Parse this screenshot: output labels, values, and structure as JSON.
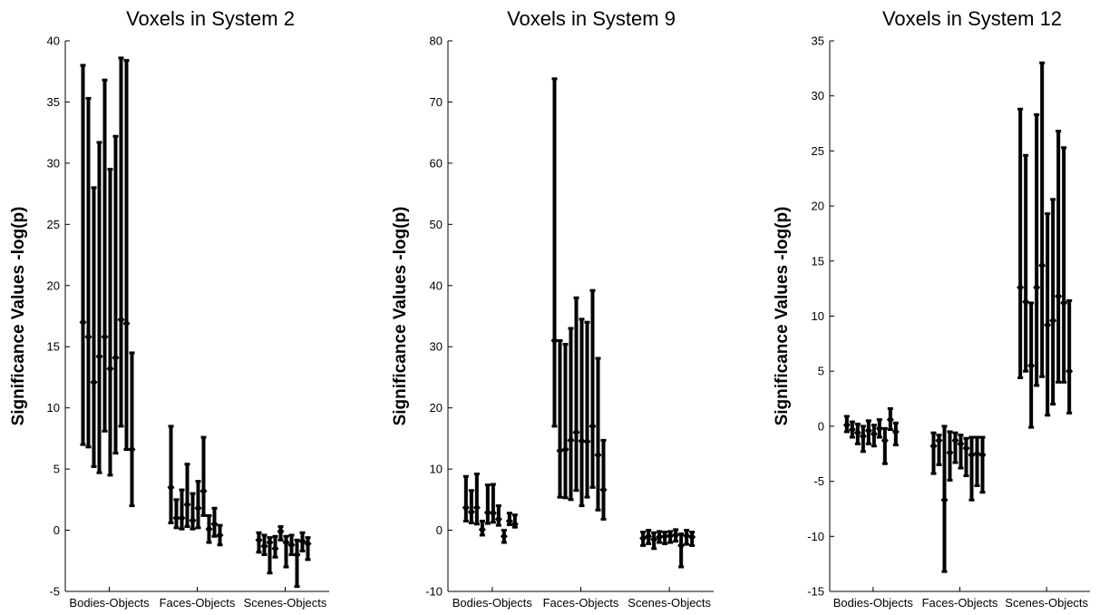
{
  "chart_data": [
    {
      "type": "errorbar",
      "title": "Voxels in System 2",
      "ylabel": "Significance Values -log(p)",
      "ylim": [
        -5,
        40
      ],
      "yticks": [
        -5,
        0,
        5,
        10,
        15,
        20,
        25,
        30,
        35,
        40
      ],
      "categories": [
        "Bodies-Objects",
        "Faces-Objects",
        "Scenes-Objects"
      ],
      "groups": [
        {
          "category": "Bodies-Objects",
          "points": [
            {
              "y": 17.0,
              "lo": 7.0,
              "hi": 38.0
            },
            {
              "y": 15.8,
              "lo": 6.8,
              "hi": 35.3
            },
            {
              "y": 12.1,
              "lo": 5.2,
              "hi": 28.0
            },
            {
              "y": 14.2,
              "lo": 4.7,
              "hi": 31.7
            },
            {
              "y": 15.8,
              "lo": 8.1,
              "hi": 36.8
            },
            {
              "y": 13.2,
              "lo": 4.5,
              "hi": 29.5
            },
            {
              "y": 14.1,
              "lo": 6.3,
              "hi": 32.2
            },
            {
              "y": 17.2,
              "lo": 8.5,
              "hi": 38.6
            },
            {
              "y": 16.9,
              "lo": 6.6,
              "hi": 38.4
            },
            {
              "y": 6.6,
              "lo": 2.0,
              "hi": 14.5
            }
          ]
        },
        {
          "category": "Faces-Objects",
          "points": [
            {
              "y": 3.5,
              "lo": 0.6,
              "hi": 8.5
            },
            {
              "y": 1.0,
              "lo": 0.2,
              "hi": 2.5
            },
            {
              "y": 1.0,
              "lo": 0.1,
              "hi": 3.3
            },
            {
              "y": 2.1,
              "lo": 0.3,
              "hi": 5.4
            },
            {
              "y": 0.8,
              "lo": 0.1,
              "hi": 3.0
            },
            {
              "y": 1.8,
              "lo": 0.2,
              "hi": 4.0
            },
            {
              "y": 3.2,
              "lo": 1.2,
              "hi": 7.6
            },
            {
              "y": 0.1,
              "lo": -1.0,
              "hi": 1.2
            },
            {
              "y": 0.5,
              "lo": -0.5,
              "hi": 1.8
            },
            {
              "y": -0.4,
              "lo": -1.2,
              "hi": 0.4
            }
          ]
        },
        {
          "category": "Scenes-Objects",
          "points": [
            {
              "y": -0.8,
              "lo": -1.8,
              "hi": -0.2
            },
            {
              "y": -1.3,
              "lo": -2.0,
              "hi": -0.4
            },
            {
              "y": -1.0,
              "lo": -3.5,
              "hi": -0.6
            },
            {
              "y": -1.5,
              "lo": -2.2,
              "hi": -0.5
            },
            {
              "y": -0.1,
              "lo": -0.8,
              "hi": 0.3
            },
            {
              "y": -1.0,
              "lo": -3.0,
              "hi": -0.5
            },
            {
              "y": -1.2,
              "lo": -2.0,
              "hi": -0.4
            },
            {
              "y": -2.0,
              "lo": -4.6,
              "hi": -0.8
            },
            {
              "y": -0.9,
              "lo": -1.7,
              "hi": -0.2
            },
            {
              "y": -1.1,
              "lo": -2.4,
              "hi": -0.6
            }
          ]
        }
      ]
    },
    {
      "type": "errorbar",
      "title": "Voxels in System 9",
      "ylabel": "Significance Values -log(p)",
      "ylim": [
        -10,
        80
      ],
      "yticks": [
        -10,
        0,
        10,
        20,
        30,
        40,
        50,
        60,
        70,
        80
      ],
      "categories": [
        "Bodies-Objects",
        "Faces-Objects",
        "Scenes-Objects"
      ],
      "groups": [
        {
          "category": "Bodies-Objects",
          "points": [
            {
              "y": 3.7,
              "lo": 1.5,
              "hi": 8.8
            },
            {
              "y": 3.0,
              "lo": 1.2,
              "hi": 6.5
            },
            {
              "y": 3.7,
              "lo": 1.0,
              "hi": 9.2
            },
            {
              "y": 0.1,
              "lo": -0.8,
              "hi": 1.5
            },
            {
              "y": 2.9,
              "lo": 1.1,
              "hi": 7.4
            },
            {
              "y": 2.8,
              "lo": 1.3,
              "hi": 7.5
            },
            {
              "y": 1.8,
              "lo": 0.8,
              "hi": 4.0
            },
            {
              "y": -1.0,
              "lo": -2.0,
              "hi": 0.0
            },
            {
              "y": 1.5,
              "lo": 0.9,
              "hi": 2.8
            },
            {
              "y": 1.0,
              "lo": 0.5,
              "hi": 2.5
            }
          ]
        },
        {
          "category": "Faces-Objects",
          "points": [
            {
              "y": 31.0,
              "lo": 17.0,
              "hi": 73.8
            },
            {
              "y": 13.0,
              "lo": 5.4,
              "hi": 31.0
            },
            {
              "y": 13.2,
              "lo": 5.3,
              "hi": 30.4
            },
            {
              "y": 14.7,
              "lo": 5.0,
              "hi": 33.0
            },
            {
              "y": 16.0,
              "lo": 6.5,
              "hi": 38.0
            },
            {
              "y": 14.6,
              "lo": 4.0,
              "hi": 34.5
            },
            {
              "y": 14.5,
              "lo": 5.4,
              "hi": 34.0
            },
            {
              "y": 17.0,
              "lo": 7.0,
              "hi": 39.2
            },
            {
              "y": 12.3,
              "lo": 3.3,
              "hi": 28.1
            },
            {
              "y": 6.6,
              "lo": 1.8,
              "hi": 14.7
            }
          ]
        },
        {
          "category": "Scenes-Objects",
          "points": [
            {
              "y": -1.3,
              "lo": -2.5,
              "hi": -0.3
            },
            {
              "y": -1.0,
              "lo": -2.2,
              "hi": 0.0
            },
            {
              "y": -1.5,
              "lo": -3.0,
              "hi": -0.4
            },
            {
              "y": -1.1,
              "lo": -2.0,
              "hi": -0.2
            },
            {
              "y": -1.0,
              "lo": -2.2,
              "hi": -0.3
            },
            {
              "y": -0.9,
              "lo": -2.0,
              "hi": -0.2
            },
            {
              "y": -0.8,
              "lo": -1.8,
              "hi": 0.1
            },
            {
              "y": -2.5,
              "lo": -6.0,
              "hi": -0.6
            },
            {
              "y": -0.9,
              "lo": -2.3,
              "hi": 0.0
            },
            {
              "y": -1.1,
              "lo": -2.5,
              "hi": -0.3
            }
          ]
        }
      ]
    },
    {
      "type": "errorbar",
      "title": "Voxels in System 12",
      "ylabel": "Significance Values -log(p)",
      "ylim": [
        -15,
        35
      ],
      "yticks": [
        -15,
        -10,
        -5,
        0,
        5,
        10,
        15,
        20,
        25,
        30,
        35
      ],
      "categories": [
        "Bodies-Objects",
        "Faces-Objects",
        "Scenes-Objects"
      ],
      "groups": [
        {
          "category": "Bodies-Objects",
          "points": [
            {
              "y": 0.1,
              "lo": -0.5,
              "hi": 0.9
            },
            {
              "y": -0.3,
              "lo": -1.0,
              "hi": 0.4
            },
            {
              "y": -0.6,
              "lo": -1.6,
              "hi": 0.2
            },
            {
              "y": -0.9,
              "lo": -2.3,
              "hi": 0.0
            },
            {
              "y": -0.4,
              "lo": -1.6,
              "hi": 0.5
            },
            {
              "y": -0.7,
              "lo": -1.8,
              "hi": 0.1
            },
            {
              "y": -0.2,
              "lo": -1.0,
              "hi": 0.6
            },
            {
              "y": -1.3,
              "lo": -3.4,
              "hi": -0.2
            },
            {
              "y": 0.6,
              "lo": -0.3,
              "hi": 1.6
            },
            {
              "y": -0.5,
              "lo": -1.7,
              "hi": 0.3
            }
          ]
        },
        {
          "category": "Faces-Objects",
          "points": [
            {
              "y": -1.8,
              "lo": -4.3,
              "hi": -0.6
            },
            {
              "y": -1.3,
              "lo": -3.5,
              "hi": -0.8
            },
            {
              "y": -6.7,
              "lo": -13.2,
              "hi": 0.0
            },
            {
              "y": -2.4,
              "lo": -4.9,
              "hi": -0.5
            },
            {
              "y": -1.3,
              "lo": -3.3,
              "hi": -0.6
            },
            {
              "y": -1.6,
              "lo": -3.8,
              "hi": -0.8
            },
            {
              "y": -2.0,
              "lo": -4.5,
              "hi": -1.1
            },
            {
              "y": -2.6,
              "lo": -6.7,
              "hi": -1.0
            },
            {
              "y": -2.5,
              "lo": -5.4,
              "hi": -1.0
            },
            {
              "y": -2.6,
              "lo": -6.0,
              "hi": -1.0
            }
          ]
        },
        {
          "category": "Scenes-Objects",
          "points": [
            {
              "y": 12.6,
              "lo": 4.4,
              "hi": 28.8
            },
            {
              "y": 11.3,
              "lo": 5.0,
              "hi": 24.6
            },
            {
              "y": 5.5,
              "lo": -0.1,
              "hi": 11.2
            },
            {
              "y": 12.6,
              "lo": 3.7,
              "hi": 28.3
            },
            {
              "y": 14.6,
              "lo": 4.5,
              "hi": 33.0
            },
            {
              "y": 9.2,
              "lo": 1.0,
              "hi": 19.3
            },
            {
              "y": 9.6,
              "lo": 2.0,
              "hi": 20.6
            },
            {
              "y": 11.8,
              "lo": 4.0,
              "hi": 26.8
            },
            {
              "y": 11.2,
              "lo": 4.0,
              "hi": 25.3
            },
            {
              "y": 5.0,
              "lo": 1.2,
              "hi": 11.4
            }
          ]
        }
      ]
    }
  ]
}
